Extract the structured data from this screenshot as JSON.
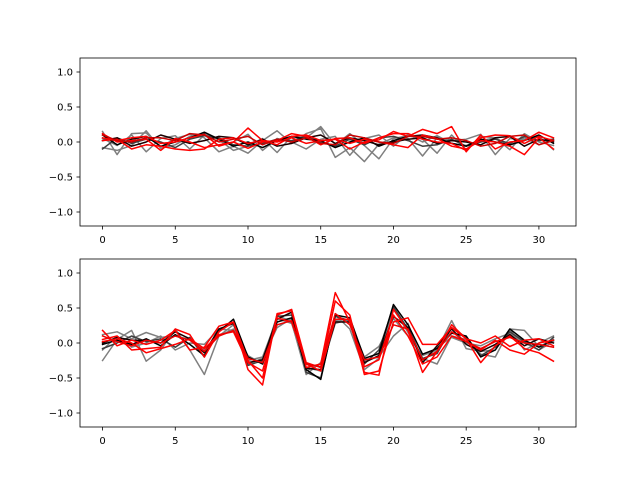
{
  "chart_data": [
    {
      "type": "line",
      "title": "",
      "xlabel": "",
      "ylabel": "",
      "xlim": [
        -1.55,
        32.55
      ],
      "ylim": [
        -1.2,
        1.2
      ],
      "xticks": [
        0,
        5,
        10,
        15,
        20,
        25,
        30
      ],
      "yticks": [
        1.0,
        0.5,
        0.0,
        -0.5,
        -1.0
      ],
      "xtick_labels": [
        "0",
        "5",
        "10",
        "15",
        "20",
        "25",
        "30"
      ],
      "ytick_labels": [
        "1.0",
        "0.5",
        "0.0",
        "−0.5",
        "−1.0"
      ],
      "grid": false,
      "x": [
        0,
        1,
        2,
        3,
        4,
        5,
        6,
        7,
        8,
        9,
        10,
        11,
        12,
        13,
        14,
        15,
        16,
        17,
        18,
        19,
        20,
        21,
        22,
        23,
        24,
        25,
        26,
        27,
        28,
        29,
        30,
        31
      ],
      "series": [
        {
          "color": "#7f7f7f",
          "values": [
            0.15,
            -0.18,
            0.12,
            0.13,
            -0.07,
            0.05,
            0.11,
            0.06,
            -0.14,
            -0.06,
            -0.16,
            0.02,
            0.16,
            -0.02,
            0.12,
            0.19,
            -0.22,
            -0.08,
            -0.28,
            -0.03,
            0.06,
            0.05,
            -0.2,
            0.06,
            0.02,
            0.04,
            0.11,
            -0.18,
            0.05,
            0.03,
            0.08,
            -0.11
          ]
        },
        {
          "color": "#7f7f7f",
          "values": [
            -0.08,
            -0.12,
            -0.05,
            0.16,
            -0.09,
            -0.04,
            0.08,
            0.12,
            0.03,
            -0.12,
            -0.06,
            0.05,
            -0.15,
            0.08,
            0.06,
            0.22,
            -0.04,
            0.12,
            -0.05,
            -0.24,
            0.05,
            0.09,
            0.04,
            -0.16,
            0.1,
            -0.11,
            0.08,
            0.06,
            -0.05,
            0.06,
            -0.04,
            0.04
          ]
        },
        {
          "color": "#7f7f7f",
          "values": [
            0.05,
            -0.05,
            0.1,
            -0.14,
            0.05,
            0.09,
            -0.1,
            0.1,
            -0.05,
            0.0,
            0.11,
            -0.12,
            0.05,
            0.0,
            -0.1,
            0.04,
            0.08,
            -0.19,
            0.05,
            0.1,
            -0.06,
            0.11,
            0.0,
            0.09,
            -0.02,
            -0.05,
            0.02,
            0.06,
            -0.11,
            0.12,
            0.0,
            -0.05
          ]
        },
        {
          "color": "#3f3f3f",
          "values": [
            -0.1,
            0.06,
            -0.02,
            0.04,
            0.0,
            -0.08,
            0.04,
            0.09,
            0.06,
            -0.04,
            -0.06,
            -0.02,
            0.04,
            0.02,
            0.08,
            0.0,
            -0.06,
            0.04,
            -0.04,
            0.06,
            0.08,
            0.02,
            -0.06,
            -0.04,
            0.04,
            -0.06,
            0.0,
            0.04,
            -0.02,
            0.08,
            0.02,
            0.04
          ]
        },
        {
          "color": "#000000",
          "values": [
            0.1,
            -0.04,
            0.04,
            0.08,
            -0.06,
            0.0,
            0.06,
            0.14,
            0.04,
            -0.06,
            0.0,
            -0.08,
            0.02,
            0.08,
            0.04,
            0.02,
            -0.08,
            0.0,
            0.06,
            -0.06,
            0.02,
            0.08,
            0.1,
            0.06,
            -0.02,
            -0.06,
            0.04,
            0.0,
            -0.04,
            0.02,
            0.1,
            -0.02
          ]
        },
        {
          "color": "#1a0000",
          "values": [
            0.02,
            0.06,
            -0.06,
            0.0,
            0.1,
            0.04,
            -0.02,
            0.02,
            0.08,
            0.06,
            -0.04,
            0.04,
            -0.06,
            -0.02,
            0.06,
            0.1,
            -0.02,
            0.06,
            0.02,
            -0.04,
            0.0,
            0.04,
            0.06,
            -0.02,
            0.02,
            0.0,
            -0.04,
            0.06,
            0.08,
            -0.06,
            0.04,
            0.0
          ]
        },
        {
          "color": "#ff0000",
          "values": [
            0.12,
            0.0,
            0.02,
            0.04,
            -0.12,
            0.05,
            0.0,
            -0.08,
            -0.04,
            0.0,
            0.2,
            0.02,
            0.0,
            0.06,
            -0.02,
            0.02,
            0.04,
            -0.1,
            0.0,
            0.03,
            0.15,
            0.08,
            0.18,
            0.12,
            0.22,
            -0.14,
            0.1,
            -0.1,
            0.0,
            0.02,
            0.14,
            0.06
          ]
        },
        {
          "color": "#ff0000",
          "values": [
            0.06,
            0.02,
            0.06,
            0.08,
            -0.02,
            0.0,
            0.06,
            0.11,
            -0.06,
            0.0,
            -0.09,
            0.0,
            0.02,
            0.12,
            0.08,
            -0.04,
            0.05,
            0.06,
            -0.02,
            0.06,
            0.12,
            0.12,
            0.04,
            0.0,
            -0.02,
            -0.12,
            0.06,
            0.1,
            0.09,
            -0.02,
            0.08,
            0.02
          ]
        },
        {
          "color": "#ff0000",
          "values": [
            0.02,
            0.04,
            -0.1,
            -0.04,
            -0.06,
            -0.1,
            -0.12,
            -0.1,
            0.04,
            0.06,
            -0.02,
            0.02,
            -0.04,
            0.08,
            0.1,
            0.02,
            0.04,
            -0.02,
            0.04,
            0.0,
            -0.04,
            -0.08,
            0.1,
            0.05,
            -0.06,
            -0.1,
            0.02,
            0.0,
            -0.06,
            -0.18,
            0.06,
            -0.1
          ]
        },
        {
          "color": "#cc0000",
          "values": [
            0.1,
            0.02,
            0.0,
            0.06,
            0.06,
            0.02,
            0.12,
            0.1,
            0.0,
            0.04,
            0.08,
            -0.04,
            0.04,
            0.0,
            0.06,
            -0.02,
            -0.04,
            0.1,
            0.06,
            0.0,
            -0.02,
            0.08,
            0.08,
            0.04,
            0.06,
            0.02,
            -0.06,
            -0.02,
            0.08,
            0.1,
            -0.04,
            0.02
          ]
        }
      ]
    },
    {
      "type": "line",
      "title": "",
      "xlabel": "",
      "ylabel": "",
      "xlim": [
        -1.55,
        32.55
      ],
      "ylim": [
        -1.2,
        1.2
      ],
      "xticks": [
        0,
        5,
        10,
        15,
        20,
        25,
        30
      ],
      "yticks": [
        1.0,
        0.5,
        0.0,
        -0.5,
        -1.0
      ],
      "xtick_labels": [
        "0",
        "5",
        "10",
        "15",
        "20",
        "25",
        "30"
      ],
      "ytick_labels": [
        "1.0",
        "0.5",
        "0.0",
        "−0.5",
        "−1.0"
      ],
      "grid": false,
      "x": [
        0,
        1,
        2,
        3,
        4,
        5,
        6,
        7,
        8,
        9,
        10,
        11,
        12,
        13,
        14,
        15,
        16,
        17,
        18,
        19,
        20,
        21,
        22,
        23,
        24,
        25,
        26,
        27,
        28,
        29,
        30,
        31
      ],
      "series": [
        {
          "color": "#7f7f7f",
          "values": [
            -0.25,
            0.05,
            0.18,
            -0.26,
            -0.1,
            0.2,
            -0.1,
            -0.45,
            0.1,
            0.2,
            -0.18,
            -0.3,
            0.4,
            0.3,
            -0.45,
            -0.28,
            0.32,
            0.3,
            -0.2,
            -0.05,
            0.35,
            0.1,
            -0.18,
            -0.1,
            0.32,
            -0.08,
            -0.12,
            -0.1,
            0.2,
            0.18,
            -0.05,
            0.05
          ]
        },
        {
          "color": "#7f7f7f",
          "values": [
            0.12,
            0.16,
            0.06,
            0.15,
            0.08,
            0.1,
            0.05,
            -0.1,
            0.1,
            0.26,
            -0.25,
            -0.2,
            0.35,
            0.28,
            -0.35,
            -0.4,
            0.28,
            0.34,
            -0.25,
            -0.2,
            0.1,
            0.28,
            -0.28,
            -0.06,
            0.08,
            0.0,
            -0.04,
            0.06,
            0.14,
            0.0,
            -0.1,
            0.02
          ]
        },
        {
          "color": "#7f7f7f",
          "values": [
            -0.1,
            0.1,
            -0.06,
            0.0,
            0.1,
            -0.1,
            0.0,
            -0.02,
            0.2,
            0.18,
            -0.3,
            -0.22,
            0.22,
            0.35,
            -0.4,
            -0.3,
            0.4,
            0.2,
            -0.38,
            -0.22,
            0.5,
            0.15,
            -0.22,
            -0.3,
            0.1,
            0.05,
            -0.16,
            -0.2,
            0.2,
            -0.1,
            0.0,
            0.1
          ]
        },
        {
          "color": "#3f3f3f",
          "values": [
            -0.08,
            0.0,
            0.1,
            0.02,
            0.06,
            -0.06,
            0.08,
            -0.2,
            0.18,
            0.3,
            -0.32,
            -0.25,
            0.38,
            0.4,
            -0.42,
            -0.5,
            0.38,
            0.32,
            -0.3,
            -0.1,
            0.52,
            0.2,
            -0.22,
            -0.15,
            0.22,
            0.08,
            -0.18,
            -0.06,
            0.16,
            0.02,
            -0.1,
            0.08
          ]
        },
        {
          "color": "#000000",
          "values": [
            -0.02,
            0.04,
            -0.02,
            0.06,
            -0.04,
            0.12,
            -0.02,
            -0.18,
            0.16,
            0.34,
            -0.2,
            -0.3,
            0.3,
            0.36,
            -0.38,
            -0.52,
            0.4,
            0.36,
            -0.22,
            -0.15,
            0.55,
            0.26,
            -0.16,
            -0.08,
            0.14,
            0.1,
            -0.2,
            -0.1,
            0.2,
            0.04,
            -0.06,
            0.04
          ]
        },
        {
          "color": "#1a0000",
          "values": [
            0.0,
            0.08,
            0.04,
            0.04,
            0.0,
            0.16,
            0.06,
            -0.14,
            0.2,
            0.28,
            -0.28,
            -0.24,
            0.34,
            0.44,
            -0.36,
            -0.38,
            0.3,
            0.3,
            -0.28,
            -0.18,
            0.38,
            0.22,
            -0.28,
            -0.04,
            0.2,
            -0.02,
            -0.12,
            -0.02,
            0.12,
            -0.04,
            0.06,
            0.0
          ]
        },
        {
          "color": "#ff0000",
          "values": [
            0.18,
            -0.04,
            0.04,
            -0.02,
            0.04,
            0.18,
            -0.1,
            -0.06,
            0.24,
            0.3,
            -0.38,
            -0.6,
            0.42,
            0.46,
            -0.35,
            -0.3,
            0.72,
            0.3,
            -0.42,
            -0.46,
            0.48,
            0.18,
            -0.42,
            -0.12,
            0.26,
            0.06,
            -0.28,
            -0.04,
            0.1,
            -0.08,
            -0.14,
            -0.26
          ]
        },
        {
          "color": "#ff0000",
          "values": [
            0.05,
            0.1,
            -0.1,
            -0.08,
            -0.06,
            0.2,
            0.12,
            -0.2,
            0.16,
            0.3,
            -0.25,
            -0.5,
            0.4,
            0.48,
            -0.28,
            -0.35,
            0.6,
            0.4,
            -0.45,
            -0.4,
            0.3,
            0.36,
            -0.02,
            -0.02,
            0.22,
            0.06,
            0.0,
            0.1,
            -0.05,
            0.04,
            0.06,
            -0.04
          ]
        },
        {
          "color": "#ff0000",
          "values": [
            0.02,
            0.06,
            0.0,
            -0.14,
            -0.08,
            -0.02,
            0.06,
            -0.08,
            0.12,
            0.16,
            -0.28,
            -0.4,
            0.36,
            0.3,
            -0.3,
            -0.4,
            0.34,
            0.34,
            -0.34,
            -0.24,
            0.4,
            0.1,
            -0.3,
            -0.2,
            0.1,
            0.02,
            -0.1,
            0.04,
            -0.1,
            -0.16,
            0.0,
            0.04
          ]
        },
        {
          "color": "#ee0000",
          "values": [
            0.1,
            0.02,
            -0.04,
            0.04,
            0.0,
            0.1,
            0.04,
            -0.12,
            0.1,
            0.18,
            -0.22,
            -0.28,
            0.26,
            0.32,
            -0.3,
            -0.34,
            0.42,
            0.26,
            -0.24,
            -0.2,
            0.26,
            0.2,
            -0.24,
            -0.12,
            0.16,
            0.02,
            -0.08,
            0.02,
            0.08,
            0.0,
            -0.02,
            -0.06
          ]
        }
      ]
    }
  ]
}
